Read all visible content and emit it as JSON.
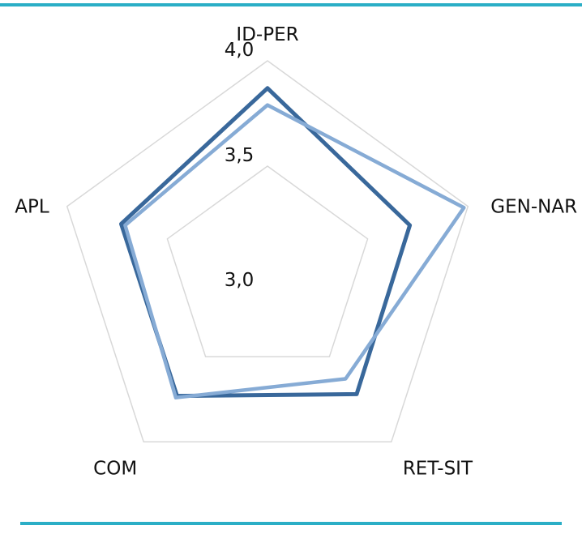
{
  "page": {
    "background": "#ffffff",
    "rule_color": "#2BAEC6"
  },
  "chart_data": {
    "type": "radar",
    "categories": [
      "ID-PER",
      "GEN-NAR",
      "RET-SIT",
      "COM",
      "APL"
    ],
    "axis_min": 3.0,
    "axis_max": 4.0,
    "gridlines": [
      3.5,
      4.0
    ],
    "tick_labels": [
      {
        "value": 4.0,
        "label": "4,0"
      },
      {
        "value": 3.5,
        "label": "3,5"
      },
      {
        "value": 3.0,
        "label": "3,0"
      }
    ],
    "series": [
      {
        "name": "series-dark-blue",
        "color": "#39689B",
        "stroke_width": 5,
        "values": [
          3.87,
          3.71,
          3.72,
          3.73,
          3.73
        ]
      },
      {
        "name": "series-light-blue",
        "color": "#86ABD5",
        "stroke_width": 4.5,
        "values": [
          3.79,
          3.98,
          3.63,
          3.74,
          3.71
        ]
      }
    ],
    "grid_color": "#D8D8D8",
    "label_color": "#111111",
    "legend": "none",
    "title": "",
    "fill": "none"
  }
}
